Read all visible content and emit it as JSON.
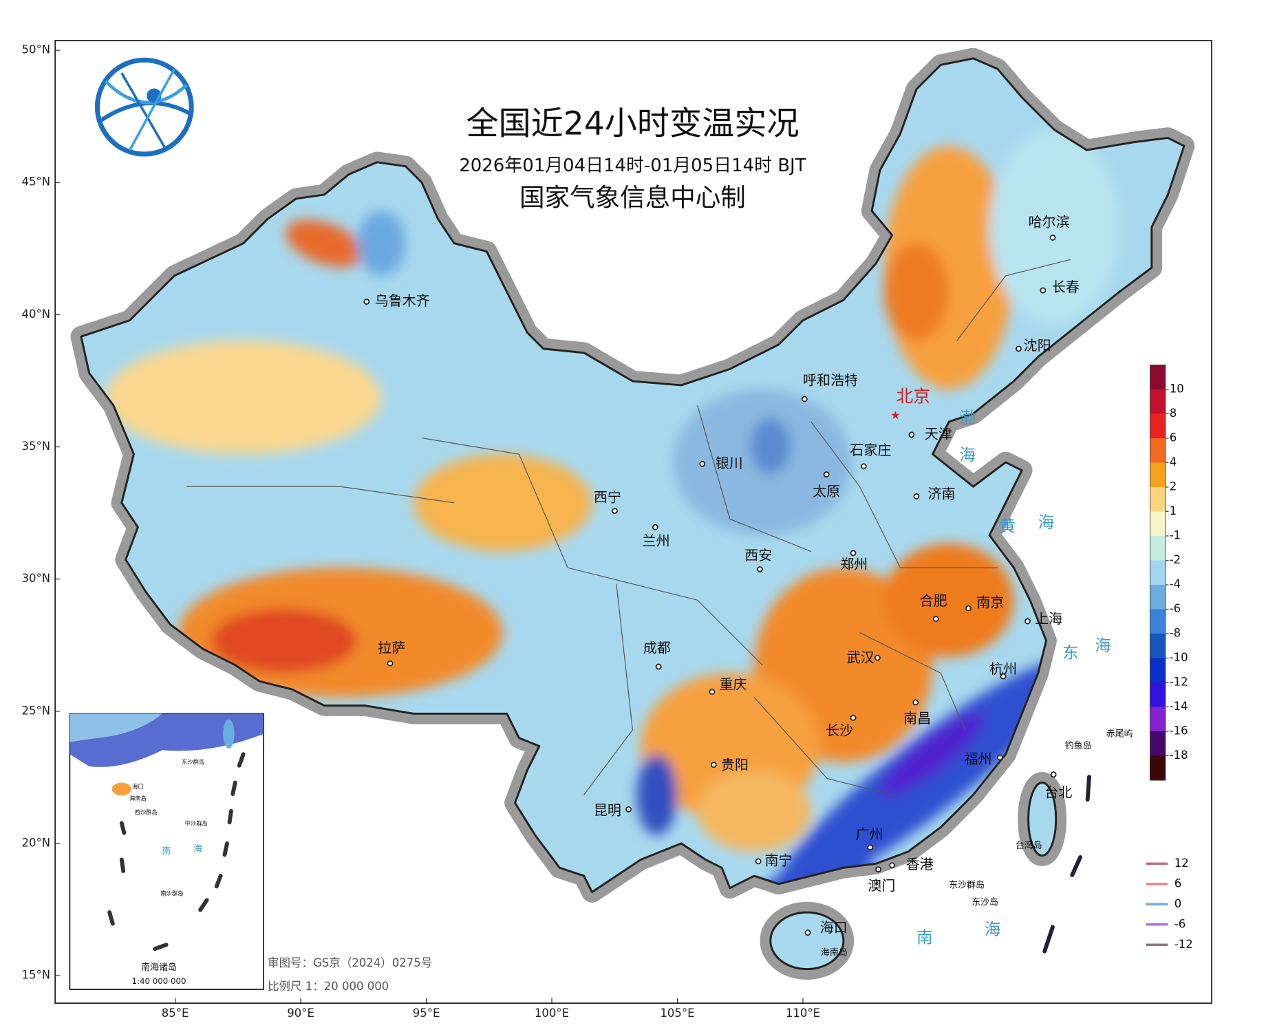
{
  "header": {
    "title": "全国近24小时变温实况",
    "subtitle": "2026年01月04日14时-01月05日14时 BJT",
    "producer": "国家气象信息中心制"
  },
  "axes": {
    "lat_ticks": [
      {
        "value": 50,
        "label": "50°N"
      },
      {
        "value": 45,
        "label": "45°N"
      },
      {
        "value": 40,
        "label": "40°N"
      },
      {
        "value": 35,
        "label": "35°N"
      },
      {
        "value": 30,
        "label": "30°N"
      },
      {
        "value": 25,
        "label": "25°N"
      },
      {
        "value": 20,
        "label": "20°N"
      },
      {
        "value": 15,
        "label": "15°N"
      }
    ],
    "lon_ticks": [
      {
        "value": 85,
        "label": "85°E"
      },
      {
        "value": 90,
        "label": "90°E"
      },
      {
        "value": 95,
        "label": "95°E"
      },
      {
        "value": 100,
        "label": "100°E"
      },
      {
        "value": 105,
        "label": "105°E"
      },
      {
        "value": 110,
        "label": "110°E"
      }
    ]
  },
  "cities": [
    "乌鲁木齐",
    "呼和浩特",
    "北京",
    "天津",
    "石家庄",
    "银川",
    "太原",
    "济南",
    "西宁",
    "兰州",
    "西安",
    "郑州",
    "合肥",
    "南京",
    "上海",
    "拉萨",
    "成都",
    "武汉",
    "重庆",
    "杭州",
    "长沙",
    "南昌",
    "贵阳",
    "福州",
    "昆明",
    "台北",
    "广州",
    "南宁",
    "香港",
    "澳门",
    "海口",
    "哈尔滨",
    "长春",
    "沈阳"
  ],
  "places": [
    "海南岛",
    "台湾岛",
    "钓鱼岛",
    "赤尾屿",
    "东沙群岛",
    "东沙岛"
  ],
  "seas": [
    "渤",
    "海",
    "黄",
    "海",
    "东",
    "海",
    "南",
    "海"
  ],
  "legend": {
    "fill_levels": [
      10,
      8,
      6,
      4,
      2,
      1,
      -1,
      -2,
      -4,
      -6,
      -8,
      -10,
      -12,
      -14,
      -16,
      -18
    ],
    "fill_colors": [
      "#8c0a2e",
      "#c4122c",
      "#e8221f",
      "#f26a21",
      "#f7a21c",
      "#fbd57e",
      "#f8f5c8",
      "#c6ecdf",
      "#a3d5f0",
      "#6aaddf",
      "#3a83d6",
      "#1555bd",
      "#0c2fc9",
      "#3212dd",
      "#8422cf",
      "#45086e",
      "#3a0606"
    ],
    "line_levels": [
      12,
      6,
      0,
      -6,
      -12
    ],
    "line_colors": [
      "#c0707f",
      "#f08080",
      "#7aa8e0",
      "#b070e0",
      "#8a7a7a"
    ]
  },
  "inset": {
    "title": "南海诸岛",
    "scale": "1:40 000 000",
    "labels": [
      "海口",
      "海南岛",
      "东沙群岛",
      "西沙群岛",
      "中沙群岛",
      "南",
      "海",
      "南沙群岛"
    ]
  },
  "footer": {
    "review_no": "审图号：GS京（2024）0275号",
    "scale": "比例尺 1：20 000 000"
  }
}
